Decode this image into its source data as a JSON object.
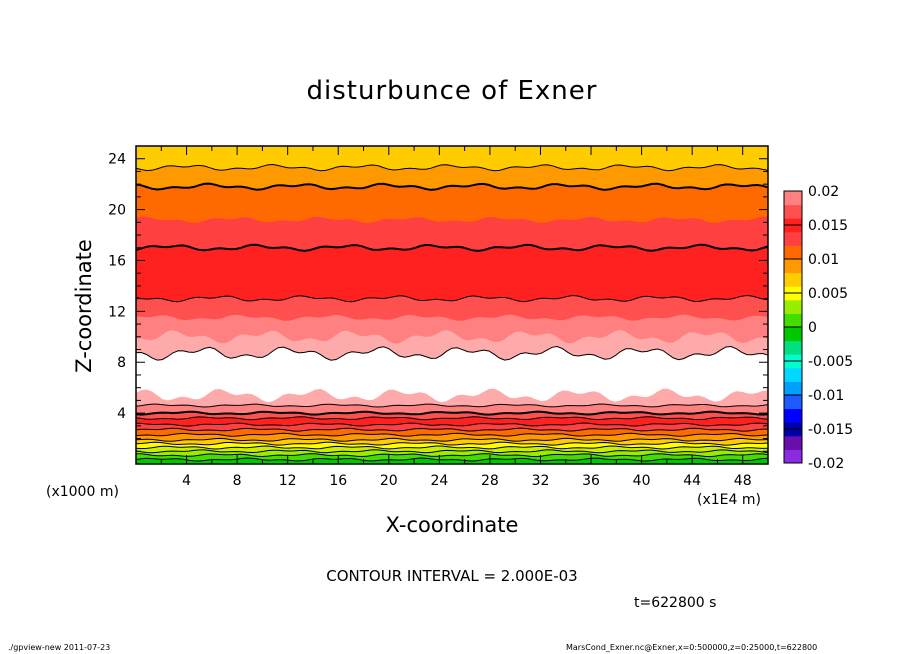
{
  "chart_data": {
    "type": "heatmap",
    "title": "disturbunce of Exner",
    "xlabel": "X-coordinate",
    "ylabel": "Z-coordinate",
    "x_unit_note": "(x1000 m)",
    "x_scale_note": "(x1E4 m)",
    "xlim": [
      0,
      50
    ],
    "ylim": [
      0,
      25
    ],
    "x_ticks": [
      "4",
      "8",
      "12",
      "16",
      "20",
      "24",
      "28",
      "32",
      "36",
      "40",
      "44",
      "48"
    ],
    "y_ticks": [
      "4",
      "8",
      "12",
      "16",
      "20",
      "24"
    ],
    "colorbar": {
      "levels": [
        -0.02,
        -0.018,
        -0.016,
        -0.014,
        -0.012,
        -0.01,
        -0.008,
        -0.006,
        -0.004,
        -0.002,
        0,
        0.002,
        0.004,
        0.006,
        0.008,
        0.01,
        0.012,
        0.014,
        0.016,
        0.018,
        0.02
      ],
      "labels": [
        "0.02",
        "0.015",
        "0.01",
        "0.005",
        "0",
        "-0.005",
        "-0.01",
        "-0.015",
        "-0.02"
      ],
      "colors": [
        "#8a2be2",
        "#6a0dad",
        "#0000aa",
        "#0000ff",
        "#1e5aff",
        "#00a0ff",
        "#00d8ff",
        "#00ffd0",
        "#00e080",
        "#00c800",
        "#44dd00",
        "#99ee00",
        "#ffff00",
        "#ffcc00",
        "#ff9900",
        "#ff6a00",
        "#ff4040",
        "#ff2020",
        "#ff5050",
        "#ff8080",
        "#ffb0b0"
      ]
    },
    "band_colors_bottom_to_top": [
      "#00c800",
      "#44dd00",
      "#99ee00",
      "#ccee00",
      "#ffff00",
      "#ffcc00",
      "#ff9900",
      "#ff6a00",
      "#ff4040",
      "#ff2020",
      "#ff5050",
      "#ff8080",
      "#ffaaaa",
      "#ffffff",
      "#ffaaaa",
      "#ff8080",
      "#ff5050",
      "#ff2020",
      "#ff2020",
      "#ff4040",
      "#ff6a00",
      "#ff9900",
      "#ffcc00"
    ],
    "band_tops_z": [
      0.35,
      0.7,
      1.0,
      1.3,
      1.6,
      1.9,
      2.3,
      2.7,
      3.1,
      3.6,
      4.0,
      4.6,
      5.4,
      8.7,
      10.0,
      11.5,
      13.0,
      15.0,
      17.0,
      19.2,
      21.8,
      23.3,
      25.0
    ],
    "grid": false,
    "legend": "colorbar-right"
  },
  "annotations": {
    "contour_interval": "CONTOUR INTERVAL = 2.000E-03",
    "time": "t=622800 s"
  },
  "footer": {
    "left": "./gpview-new  2011-07-23",
    "right": "MarsCond_Exner.nc@Exner,x=0:500000,z=0:25000,t=622800"
  }
}
